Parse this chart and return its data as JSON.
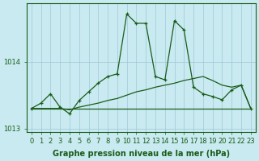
{
  "hours": [
    0,
    1,
    2,
    3,
    4,
    5,
    6,
    7,
    8,
    9,
    10,
    11,
    12,
    13,
    14,
    15,
    16,
    17,
    18,
    19,
    20,
    21,
    22,
    23
  ],
  "line_flat": [
    1013.3,
    1013.3,
    1013.3,
    1013.3,
    1013.3,
    1013.3,
    1013.3,
    1013.3,
    1013.3,
    1013.3,
    1013.3,
    1013.3,
    1013.3,
    1013.3,
    1013.3,
    1013.3,
    1013.3,
    1013.3,
    1013.3,
    1013.3,
    1013.3,
    1013.3,
    1013.3,
    1013.3
  ],
  "line_rising": [
    1013.3,
    1013.3,
    1013.3,
    1013.3,
    1013.28,
    1013.32,
    1013.35,
    1013.38,
    1013.42,
    1013.45,
    1013.5,
    1013.55,
    1013.58,
    1013.62,
    1013.65,
    1013.68,
    1013.72,
    1013.75,
    1013.78,
    1013.72,
    1013.65,
    1013.62,
    1013.65,
    1013.3
  ],
  "line_main": [
    1013.3,
    1013.38,
    1013.52,
    1013.32,
    1013.22,
    1013.42,
    1013.55,
    1013.68,
    1013.78,
    1013.82,
    1014.72,
    1014.58,
    1014.58,
    1013.78,
    1013.73,
    1014.62,
    1014.48,
    1013.62,
    1013.52,
    1013.48,
    1013.43,
    1013.58,
    1013.65,
    1013.3
  ],
  "line_color": "#1a5c1a",
  "bg_color": "#c8eaf0",
  "grid_color": "#a0c8d8",
  "title": "Graphe pression niveau de la mer (hPa)",
  "ylim_min": 1012.95,
  "ylim_max": 1014.88,
  "yticks": [
    1013,
    1014
  ],
  "xticks": [
    0,
    1,
    2,
    3,
    4,
    5,
    6,
    7,
    8,
    9,
    10,
    11,
    12,
    13,
    14,
    15,
    16,
    17,
    18,
    19,
    20,
    21,
    22,
    23
  ],
  "title_fontsize": 7,
  "tick_fontsize": 6
}
